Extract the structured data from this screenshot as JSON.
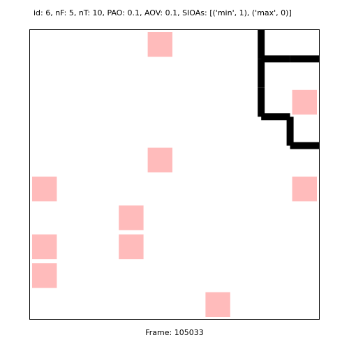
{
  "header_text": "id: 6, nF: 5, nT: 10, PAO: 0.1, AOV: 0.1, SIOAs: [('min', 1), ('max', 0)]",
  "footer": {
    "label": "Frame:",
    "frame": "105033"
  },
  "colors": {
    "cell": "#ffbbbb",
    "wall": "#000000",
    "background": "#ffffff"
  },
  "grid": {
    "cols": 10,
    "rows": 10,
    "cells": [
      {
        "col": 4,
        "row": 0
      },
      {
        "col": 9,
        "row": 2
      },
      {
        "col": 4,
        "row": 4
      },
      {
        "col": 0,
        "row": 5
      },
      {
        "col": 9,
        "row": 5
      },
      {
        "col": 3,
        "row": 6
      },
      {
        "col": 0,
        "row": 7
      },
      {
        "col": 3,
        "row": 7
      },
      {
        "col": 0,
        "row": 8
      },
      {
        "col": 6,
        "row": 9
      }
    ],
    "walls": [
      [
        [
          8,
          0
        ],
        [
          8,
          1
        ]
      ],
      [
        [
          8,
          1
        ],
        [
          9,
          1
        ]
      ],
      [
        [
          9,
          1
        ],
        [
          10,
          1
        ]
      ],
      [
        [
          8,
          1
        ],
        [
          8,
          2
        ]
      ],
      [
        [
          8,
          2
        ],
        [
          8,
          3
        ]
      ],
      [
        [
          8,
          3
        ],
        [
          9,
          3
        ]
      ],
      [
        [
          9,
          3
        ],
        [
          9,
          4
        ]
      ],
      [
        [
          9,
          4
        ],
        [
          10,
          4
        ]
      ]
    ]
  }
}
